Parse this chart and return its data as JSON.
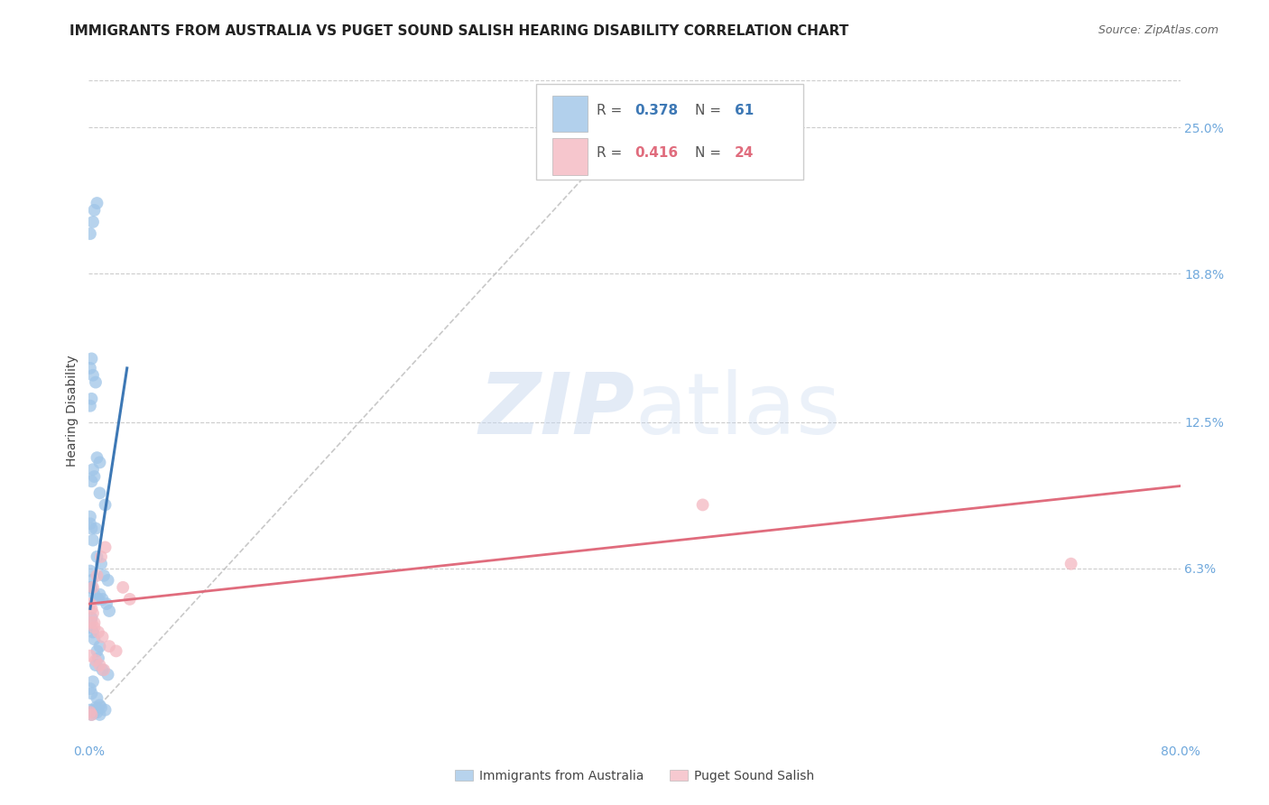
{
  "title": "IMMIGRANTS FROM AUSTRALIA VS PUGET SOUND SALISH HEARING DISABILITY CORRELATION CHART",
  "source": "Source: ZipAtlas.com",
  "ylabel": "Hearing Disability",
  "right_ytick_labels": [
    "6.3%",
    "12.5%",
    "18.8%",
    "25.0%"
  ],
  "right_ytick_values": [
    0.063,
    0.125,
    0.188,
    0.25
  ],
  "xlim": [
    0.0,
    0.8
  ],
  "ylim": [
    -0.01,
    0.27
  ],
  "xtick_values": [
    0.0,
    0.16,
    0.32,
    0.48,
    0.64,
    0.8
  ],
  "xtick_labels": [
    "0.0%",
    "",
    "",
    "",
    "",
    "80.0%"
  ],
  "blue_color": "#9fc5e8",
  "pink_color": "#f4b8c1",
  "blue_line_color": "#3d78b5",
  "pink_line_color": "#e06c7d",
  "title_color": "#222222",
  "watermark": "ZIPatlas",
  "legend_r1": "0.378",
  "legend_n1": "61",
  "legend_r2": "0.416",
  "legend_n2": "24",
  "blue_scatter_x": [
    0.008,
    0.012,
    0.005,
    0.003,
    0.006,
    0.009,
    0.011,
    0.002,
    0.004,
    0.007,
    0.013,
    0.015,
    0.002,
    0.001,
    0.003,
    0.004,
    0.008,
    0.006,
    0.007,
    0.005,
    0.01,
    0.014,
    0.003,
    0.001,
    0.002,
    0.006,
    0.008,
    0.009,
    0.012,
    0.004,
    0.001,
    0.002,
    0.001,
    0.003,
    0.004,
    0.006,
    0.008,
    0.002,
    0.001,
    0.005,
    0.003,
    0.001,
    0.002,
    0.001,
    0.003,
    0.004,
    0.006,
    0.008,
    0.01,
    0.002,
    0.001,
    0.002,
    0.001,
    0.004,
    0.006,
    0.008,
    0.003,
    0.001,
    0.002,
    0.005,
    0.014
  ],
  "blue_scatter_y": [
    0.095,
    0.09,
    0.08,
    0.075,
    0.068,
    0.065,
    0.06,
    0.055,
    0.052,
    0.05,
    0.048,
    0.045,
    0.042,
    0.038,
    0.036,
    0.033,
    0.03,
    0.028,
    0.025,
    0.022,
    0.02,
    0.018,
    0.015,
    0.012,
    0.01,
    0.008,
    0.005,
    0.004,
    0.003,
    0.003,
    0.082,
    0.08,
    0.085,
    0.105,
    0.102,
    0.11,
    0.108,
    0.135,
    0.132,
    0.142,
    0.145,
    0.148,
    0.152,
    0.205,
    0.21,
    0.215,
    0.218,
    0.052,
    0.05,
    0.1,
    0.055,
    0.058,
    0.062,
    0.002,
    0.002,
    0.001,
    0.002,
    0.003,
    0.001,
    0.004,
    0.058
  ],
  "pink_scatter_x": [
    0.003,
    0.006,
    0.009,
    0.012,
    0.002,
    0.004,
    0.007,
    0.01,
    0.015,
    0.02,
    0.001,
    0.005,
    0.008,
    0.011,
    0.001,
    0.002,
    0.003,
    0.004,
    0.025,
    0.03,
    0.001,
    0.002,
    0.45,
    0.72
  ],
  "pink_scatter_y": [
    0.055,
    0.06,
    0.068,
    0.072,
    0.04,
    0.038,
    0.036,
    0.034,
    0.03,
    0.028,
    0.026,
    0.024,
    0.022,
    0.02,
    0.048,
    0.046,
    0.044,
    0.04,
    0.055,
    0.05,
    0.002,
    0.001,
    0.09,
    0.065
  ],
  "blue_trendline_x": [
    0.001,
    0.028
  ],
  "blue_trendline_y": [
    0.046,
    0.148
  ],
  "pink_trendline_x": [
    0.0,
    0.8
  ],
  "pink_trendline_y": [
    0.048,
    0.098
  ],
  "diag_line_x": [
    0.0,
    0.42
  ],
  "diag_line_y": [
    0.0,
    0.265
  ],
  "background_color": "#ffffff",
  "grid_color": "#cccccc",
  "title_fontsize": 11,
  "source_fontsize": 9,
  "axis_fontsize": 10,
  "tick_fontsize": 10,
  "right_tick_color": "#6fa8dc",
  "bottom_legend_label1": "Immigrants from Australia",
  "bottom_legend_label2": "Puget Sound Salish"
}
